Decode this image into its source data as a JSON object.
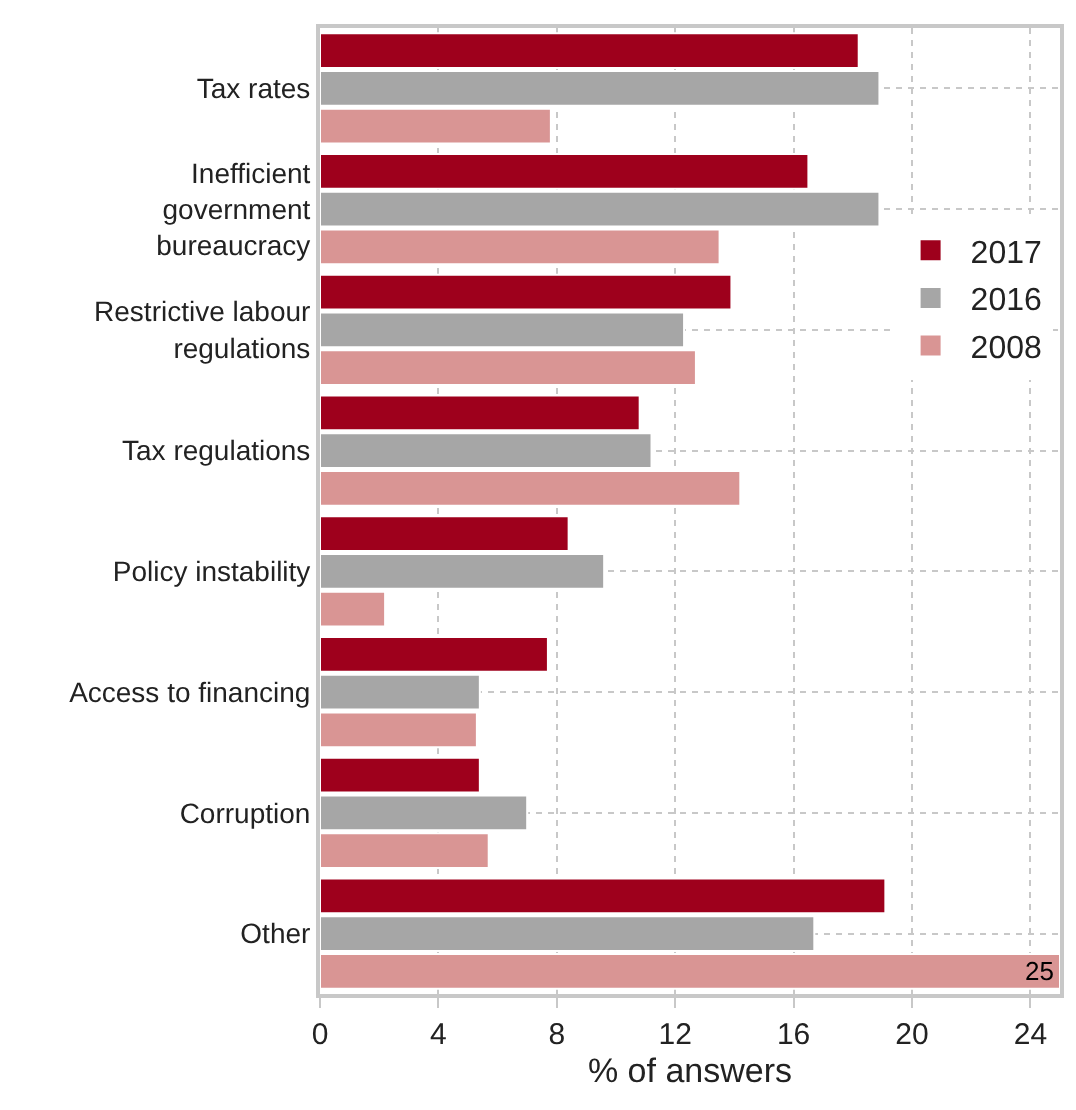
{
  "chart_data": {
    "type": "bar",
    "orientation": "horizontal",
    "xlabel": "% of answers",
    "categories": [
      "Tax rates",
      "Inefficient\ngovernment\nbureaucracy",
      "Restrictive labour\nregulations",
      "Tax regulations",
      "Policy instability",
      "Access to financing",
      "Corruption",
      "Other"
    ],
    "series": [
      {
        "name": "2017",
        "color": "#9e001c",
        "values": [
          18.2,
          16.5,
          13.9,
          10.8,
          8.4,
          7.7,
          5.4,
          19.1
        ]
      },
      {
        "name": "2016",
        "color": "#a6a6a6",
        "values": [
          18.9,
          18.9,
          12.3,
          11.2,
          9.6,
          5.4,
          7.0,
          16.7
        ]
      },
      {
        "name": "2008",
        "color": "#d99594",
        "values": [
          7.8,
          13.5,
          12.7,
          14.2,
          2.2,
          5.3,
          5.7,
          25
        ],
        "value_labels": [
          null,
          null,
          null,
          null,
          null,
          null,
          null,
          "25"
        ]
      }
    ],
    "xlim": [
      0,
      25
    ],
    "xticks": [
      0,
      4,
      8,
      12,
      16,
      20,
      24
    ],
    "grid": true,
    "legend": "right"
  }
}
